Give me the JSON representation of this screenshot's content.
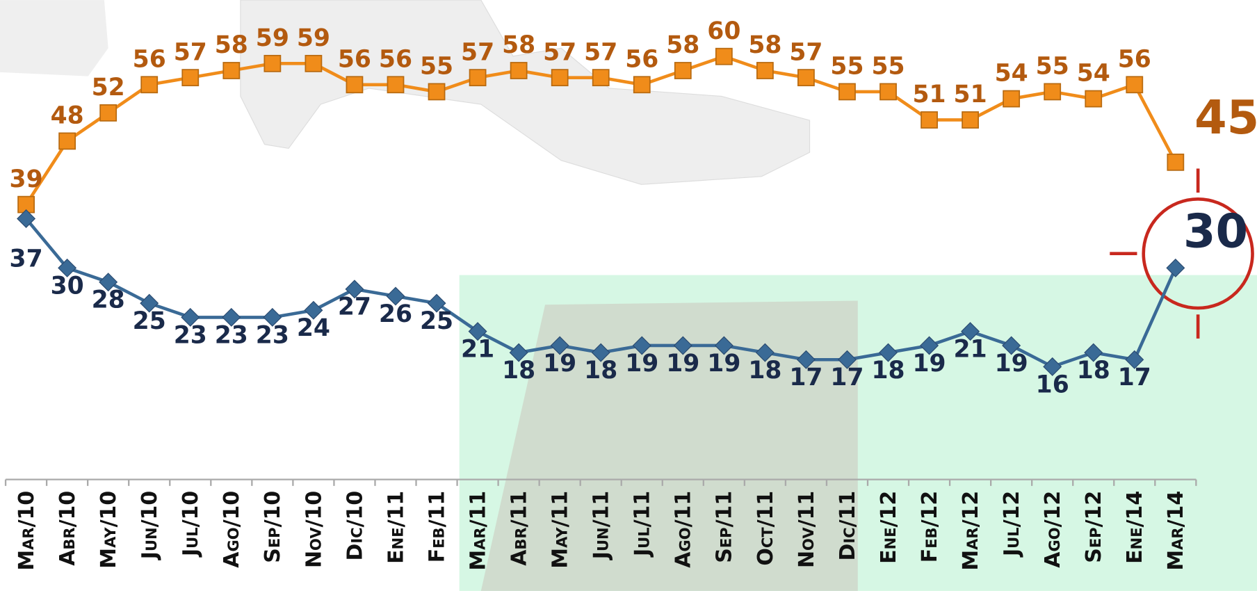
{
  "chart_data": {
    "type": "line",
    "categories": [
      "Mar/10",
      "Abr/10",
      "May/10",
      "Jun/10",
      "Jul/10",
      "Ago/10",
      "Sep/10",
      "Nov/10",
      "Dic/10",
      "Ene/11",
      "Feb/11",
      "Mar/11",
      "Abr/11",
      "May/11",
      "Jun/11",
      "Jul/11",
      "Ago/11",
      "Sep/11",
      "Oct/11",
      "Nov/11",
      "Dic/11",
      "Ene/12",
      "Feb/12",
      "Mar/12",
      "Jul/12",
      "Ago/12",
      "Sep/12",
      "Ene/14",
      "Mar/14"
    ],
    "series": [
      {
        "color": "#f08c1a",
        "label_color": "#b35a0f",
        "marker": "square",
        "values": [
          39,
          48,
          52,
          56,
          57,
          58,
          59,
          59,
          56,
          56,
          55,
          57,
          58,
          57,
          57,
          56,
          58,
          60,
          58,
          57,
          55,
          55,
          51,
          51,
          54,
          55,
          54,
          56,
          45
        ]
      },
      {
        "color": "#3a6a96",
        "label_color": "#1a2a4a",
        "marker": "diamond",
        "values": [
          37,
          30,
          28,
          25,
          23,
          23,
          23,
          24,
          27,
          26,
          25,
          21,
          18,
          19,
          18,
          19,
          19,
          19,
          18,
          17,
          17,
          18,
          19,
          21,
          19,
          16,
          18,
          17,
          30
        ]
      }
    ],
    "ylim": [
      0,
      68
    ]
  }
}
